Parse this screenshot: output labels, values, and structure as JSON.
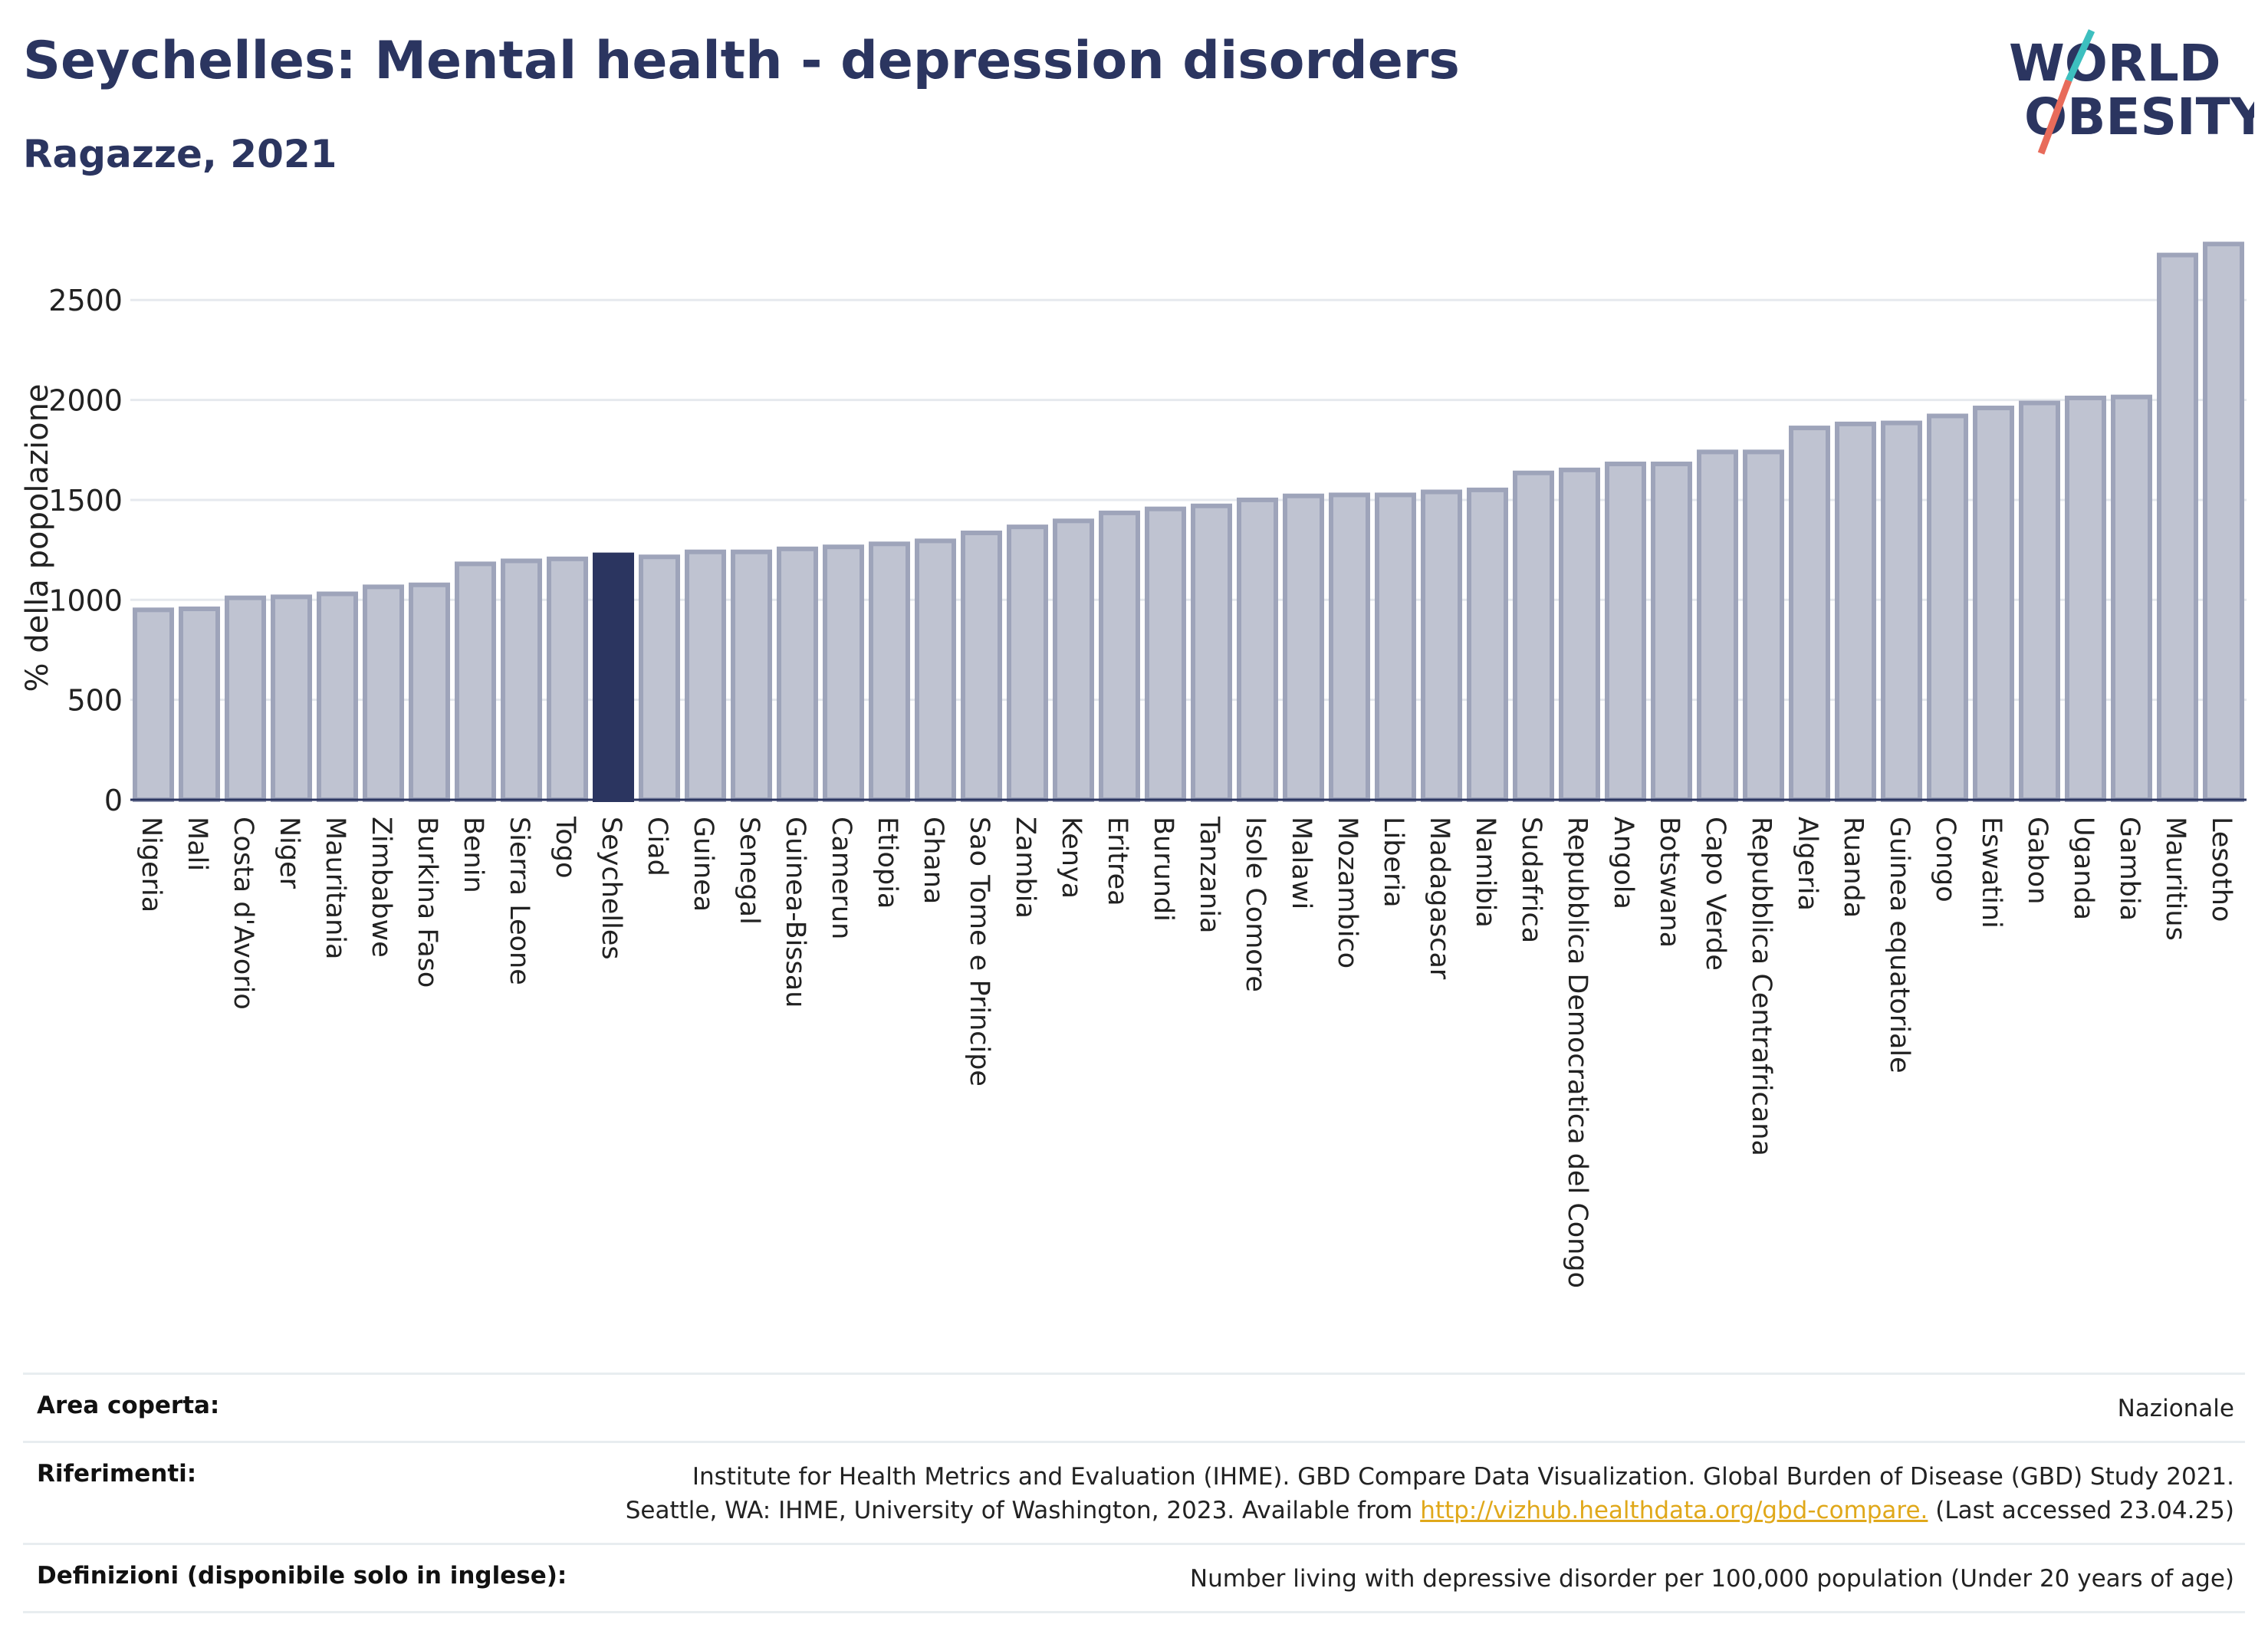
{
  "title": "Seychelles: Mental health - depression disorders",
  "subtitle": "Ragazze, 2021",
  "logo": {
    "line1": "WORLD",
    "line2": "OBESITY"
  },
  "colors": {
    "highlight": "#2b3560",
    "bar": "#bfc3d1",
    "bar_border": "#9ea4ba",
    "grid": "#e6e9ee",
    "link": "#e0a81a"
  },
  "chart_data": {
    "type": "bar",
    "title": "Seychelles: Mental health - depression disorders",
    "subtitle": "Ragazze, 2021",
    "ylabel": "% della popolazione",
    "xlabel": "",
    "ylim": [
      0,
      2850
    ],
    "yticks": [
      0,
      500,
      1000,
      1500,
      2000,
      2500
    ],
    "highlight": "Seychelles",
    "grid": true,
    "categories": [
      "Nigeria",
      "Mali",
      "Costa d'Avorio",
      "Niger",
      "Mauritania",
      "Zimbabwe",
      "Burkina Faso",
      "Benin",
      "Sierra Leone",
      "Togo",
      "Seychelles",
      "Ciad",
      "Guinea",
      "Senegal",
      "Guinea-Bissau",
      "Camerun",
      "Etiopia",
      "Ghana",
      "Sao Tome e Principe",
      "Zambia",
      "Kenya",
      "Eritrea",
      "Burundi",
      "Tanzania",
      "Isole Comore",
      "Malawi",
      "Mozambico",
      "Liberia",
      "Madagascar",
      "Namibia",
      "Sudafrica",
      "Repubblica Democratica del Congo",
      "Angola",
      "Botswana",
      "Capo Verde",
      "Repubblica Centrafricana",
      "Algeria",
      "Ruanda",
      "Guinea equatoriale",
      "Congo",
      "Eswatini",
      "Gabon",
      "Uganda",
      "Gambia",
      "Mauritius",
      "Lesotho"
    ],
    "values": [
      950,
      955,
      1010,
      1015,
      1030,
      1065,
      1075,
      1180,
      1195,
      1205,
      1225,
      1215,
      1240,
      1240,
      1255,
      1265,
      1280,
      1295,
      1335,
      1365,
      1395,
      1435,
      1455,
      1470,
      1500,
      1520,
      1525,
      1525,
      1540,
      1550,
      1635,
      1650,
      1680,
      1680,
      1740,
      1740,
      1860,
      1880,
      1885,
      1920,
      1960,
      1985,
      2010,
      2015,
      2725,
      2780
    ]
  },
  "meta": {
    "area_label": "Area coperta:",
    "area_value": "Nazionale",
    "ref_label": "Riferimenti:",
    "ref_line1": "Institute for Health Metrics and Evaluation (IHME). GBD Compare Data Visualization. Global Burden of Disease (GBD) Study 2021.",
    "ref_line2_pre": "Seattle, WA: IHME, University of Washington, 2023. Available from ",
    "ref_link": "http://vizhub.healthdata.org/gbd-compare.",
    "ref_line2_post": " (Last accessed 23.04.25)",
    "def_label": "Definizioni (disponibile solo in inglese):",
    "def_value": "Number living with depressive disorder per 100,000 population (Under 20 years of age)"
  }
}
